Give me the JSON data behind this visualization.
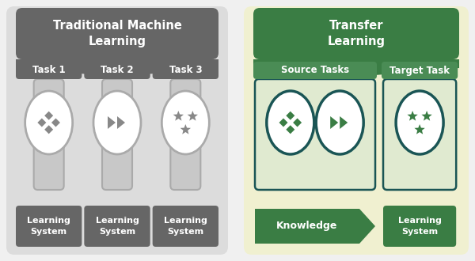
{
  "bg_color": "#f0f0f0",
  "left_panel_bg": "#dcdcdc",
  "right_panel_bg": "#f0f0d0",
  "left_header_color": "#666666",
  "right_header_color": "#3a7d44",
  "task_bar_left": "#666666",
  "task_bar_right": "#4a8c55",
  "learning_sys_color": "#666666",
  "knowledge_color": "#3a7d44",
  "learning_sys_right_color": "#3a7d44",
  "oval_stroke_left": "#aaaaaa",
  "oval_stroke_right": "#1a5555",
  "icon_fill_left": "#888888",
  "icon_fill_right": "#3a7d44",
  "white": "#ffffff",
  "left_title": "Traditional Machine\nLearning",
  "right_title": "Transfer\nLearning",
  "tasks_left": [
    "Task 1",
    "Task 2",
    "Task 3"
  ],
  "tasks_right_1": "Source Tasks",
  "tasks_right_2": "Target Task",
  "learning_sys": "Learning\nSystem",
  "knowledge": "Knowledge",
  "font_color_header": "#ffffff"
}
